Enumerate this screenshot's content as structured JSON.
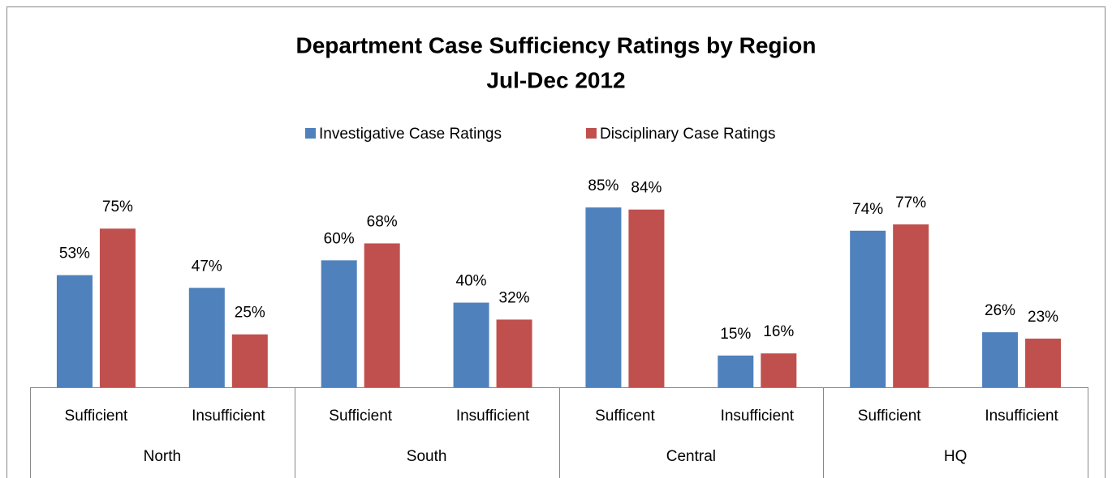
{
  "chart_data": {
    "type": "bar",
    "title": "Department Case Sufficiency Ratings by Region",
    "subtitle": "Jul-Dec 2012",
    "categories": [
      "Sufficient",
      "Insufficient",
      "Sufficient",
      "Insufficient",
      "Sufficent",
      "Insufficient",
      "Sufficient",
      "Insufficient"
    ],
    "groups": [
      "North",
      "South",
      "Central",
      "HQ"
    ],
    "series": [
      {
        "name": "Investigative Case Ratings",
        "color": "#4f81bd",
        "values": [
          53,
          47,
          60,
          40,
          85,
          15,
          74,
          26
        ],
        "value_labels": [
          "53%",
          "47%",
          "60%",
          "40%",
          "85%",
          "15%",
          "74%",
          "26%"
        ]
      },
      {
        "name": "Disciplinary Case Ratings",
        "color": "#c0504d",
        "values": [
          75,
          25,
          68,
          32,
          84,
          16,
          77,
          23
        ],
        "value_labels": [
          "75%",
          "25%",
          "68%",
          "32%",
          "84%",
          "16%",
          "77%",
          "23%"
        ]
      }
    ],
    "ylim": [
      0,
      90
    ],
    "legend": "top"
  }
}
